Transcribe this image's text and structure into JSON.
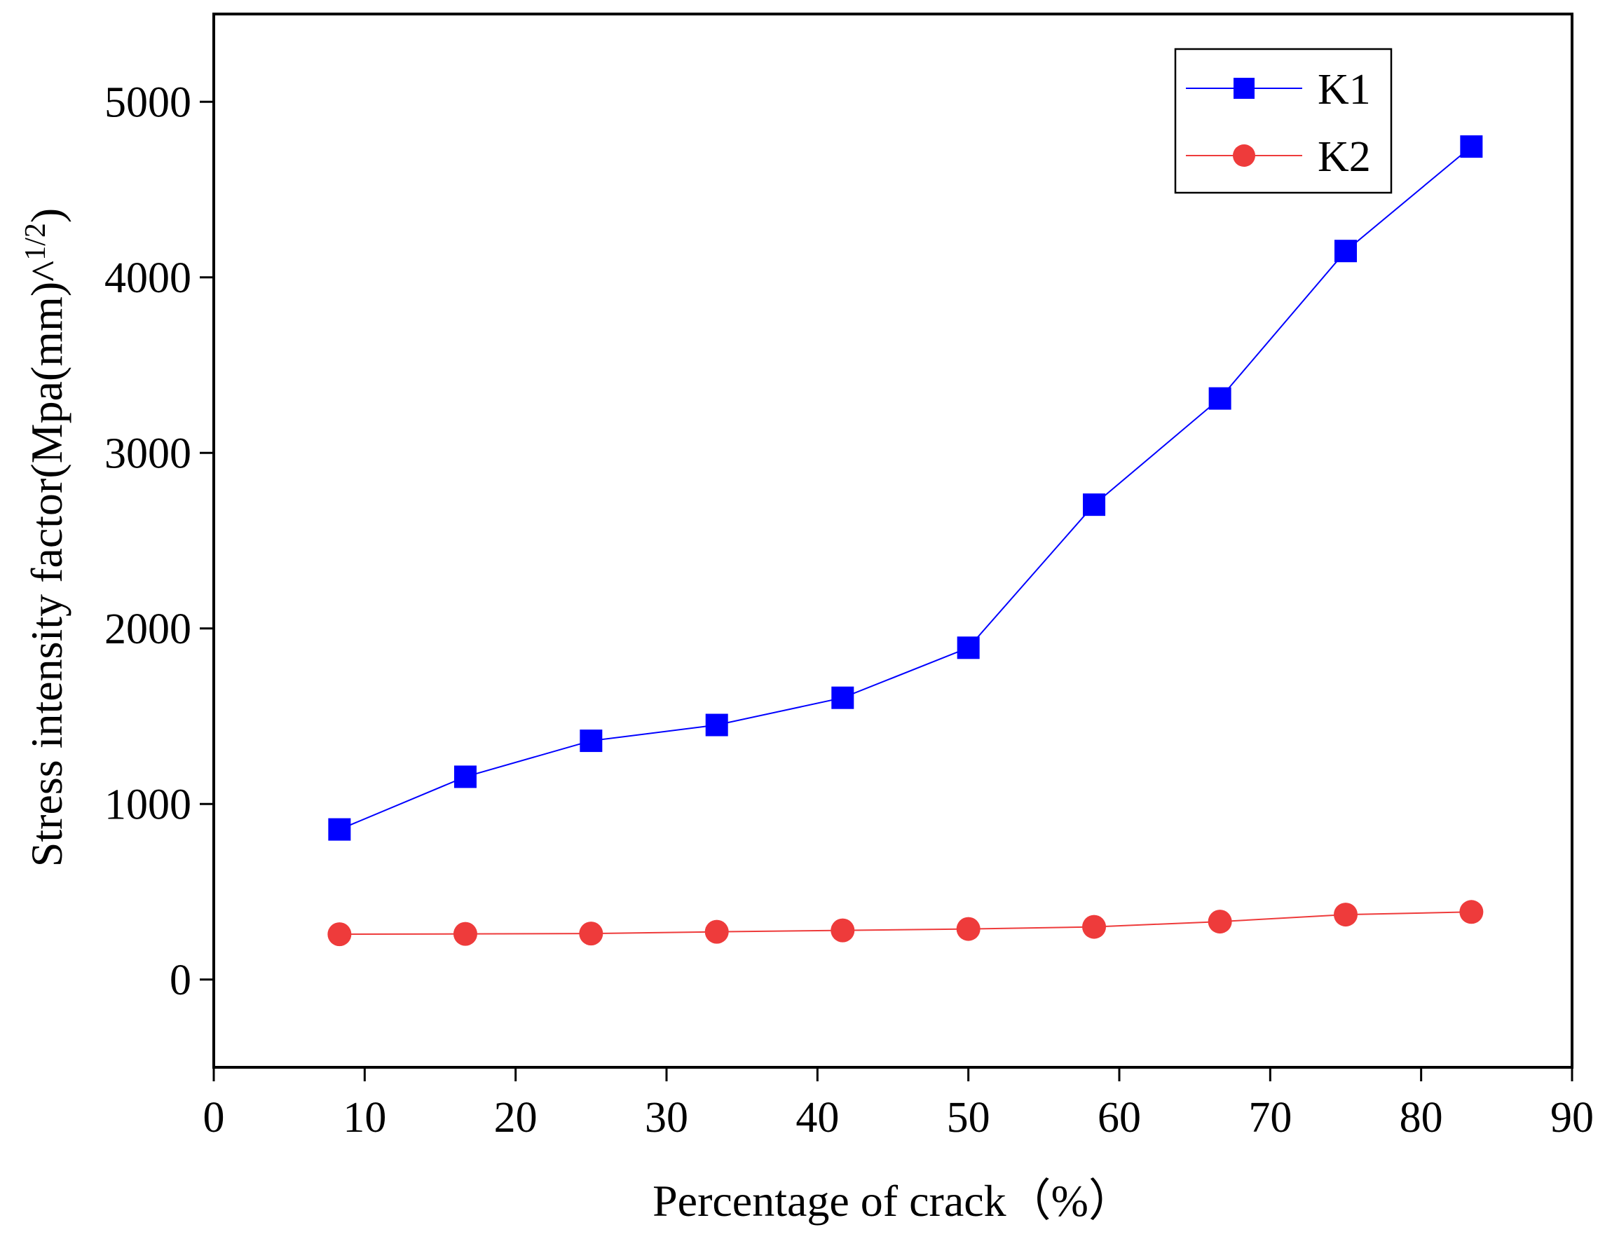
{
  "chart_data": {
    "type": "line",
    "title": "",
    "xlabel": "Percentage of crack（%）",
    "ylabel": "Stress intensity factor(Mpa(mm)^1/2)",
    "ylabel_parts": {
      "base": "Stress intensity factor(Mpa(mm)^",
      "superscript": "1/2",
      "close": ")"
    },
    "xlim": [
      0,
      90
    ],
    "ylim": [
      -500,
      5500
    ],
    "xticks": [
      0,
      10,
      20,
      30,
      40,
      50,
      60,
      70,
      80,
      90
    ],
    "xtick_labels": [
      "0",
      "10",
      "20",
      "30",
      "40",
      "50",
      "60",
      "70",
      "80",
      "90"
    ],
    "yticks": [
      0,
      1000,
      2000,
      3000,
      4000,
      5000
    ],
    "ytick_labels": [
      "0",
      "1000",
      "2000",
      "3000",
      "4000",
      "5000"
    ],
    "grid": false,
    "legend_position": "top-right",
    "x": [
      8.33,
      16.67,
      25.0,
      33.33,
      41.67,
      50.0,
      58.33,
      66.67,
      75.0,
      83.33
    ],
    "series": [
      {
        "name": "K1",
        "color": "#0000ff",
        "marker": "square",
        "values": [
          855,
          1155,
          1360,
          1450,
          1605,
          1890,
          2705,
          3310,
          4150,
          4745
        ]
      },
      {
        "name": "K2",
        "color": "#ee3b3b",
        "marker": "circle",
        "values": [
          258,
          260,
          262,
          272,
          280,
          288,
          300,
          330,
          370,
          385
        ]
      }
    ]
  }
}
